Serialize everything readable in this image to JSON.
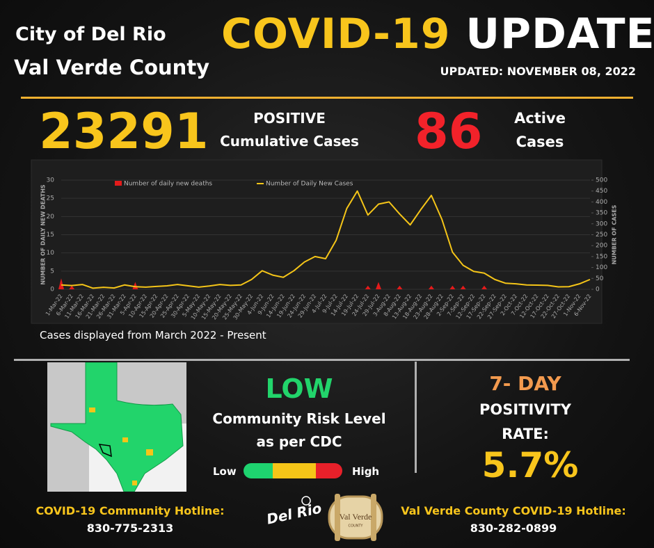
{
  "header": {
    "city": "City of Del Rio",
    "county": "Val Verde County",
    "title_covid": "COVID-19",
    "title_update": "UPDATE",
    "updated": "UPDATED: NOVEMBER 08, 2022"
  },
  "stats": {
    "positive_value": "23291",
    "positive_label_1": "POSITIVE",
    "positive_label_2": "Cumulative Cases",
    "active_value": "86",
    "active_label_1": "Active",
    "active_label_2": "Cases"
  },
  "chart_data": {
    "type": "combo",
    "caption": "Cases displayed from March 2022 - Present",
    "ylabel": "NUMBER OF DAILY NEW DEATHS",
    "y2label": "NUMBER OF CASES",
    "ylim": [
      0,
      30
    ],
    "yticks": [
      0,
      5,
      10,
      15,
      20,
      25,
      30
    ],
    "y2lim": [
      0,
      500
    ],
    "y2ticks": [
      0,
      50,
      100,
      150,
      200,
      250,
      300,
      350,
      400,
      450,
      500
    ],
    "grid": true,
    "categories": [
      "1-Mar-22",
      "6-Mar-22",
      "11-Mar-22",
      "16-Mar-22",
      "21-Mar-22",
      "26-Mar-22",
      "31-Mar-22",
      "5-Apr-22",
      "10-Apr-22",
      "15-Apr-22",
      "20-Apr-22",
      "25-Apr-22",
      "30-Apr-22",
      "5-May-22",
      "10-May-22",
      "15-May-22",
      "20-May-22",
      "25-May-22",
      "30-May-22",
      "4-Jun-22",
      "9-Jun-22",
      "14-Jun-22",
      "19-Jun-22",
      "24-Jun-22",
      "29-Jun-22",
      "4-Jul-22",
      "9-Jul-22",
      "14-Jul-22",
      "19-Jul-22",
      "24-Jul-22",
      "29-Jul-22",
      "3-Aug-22",
      "8-Aug-22",
      "13-Aug-22",
      "18-Aug-22",
      "23-Aug-22",
      "28-Aug-22",
      "2-Sep-22",
      "7-Sep-22",
      "12-Sep-22",
      "17-Sep-22",
      "22-Sep-22",
      "27-Sep-22",
      "2-Oct-22",
      "7-Oct-22",
      "12-Oct-22",
      "17-Oct-22",
      "22-Oct-22",
      "27-Oct-22",
      "1-Nov-22",
      "6-Nov-22"
    ],
    "series": [
      {
        "name": "Number of daily new deaths",
        "type": "bar",
        "color": "#e31b1b",
        "values": [
          3,
          1,
          0,
          0,
          0,
          0,
          0,
          2,
          0,
          0,
          0,
          0,
          0,
          0,
          0,
          0,
          0,
          0,
          0,
          0,
          0,
          0,
          0,
          0,
          0,
          0,
          0,
          0,
          0,
          1,
          2,
          0,
          1,
          0,
          0,
          1,
          0,
          1,
          1,
          0,
          1,
          0,
          0,
          0,
          0,
          0,
          0,
          0,
          0,
          0,
          0
        ]
      },
      {
        "name": "Number of Daily New Cases",
        "type": "line",
        "color": "#f5c518",
        "axis": "y2",
        "values": [
          20,
          17,
          22,
          5,
          9,
          6,
          20,
          12,
          10,
          13,
          16,
          22,
          16,
          10,
          15,
          22,
          18,
          20,
          45,
          85,
          65,
          55,
          85,
          125,
          150,
          140,
          225,
          370,
          450,
          340,
          390,
          400,
          345,
          295,
          365,
          430,
          320,
          170,
          110,
          82,
          74,
          45,
          28,
          25,
          20,
          19,
          18,
          11,
          12,
          25,
          45
        ]
      }
    ]
  },
  "risk": {
    "level": "LOW",
    "label_1": "Community Risk Level",
    "label_2": "as per CDC",
    "low": "Low",
    "high": "High"
  },
  "positivity": {
    "label_1": "7- DAY",
    "label_2": "POSITIVITY",
    "label_3": "RATE:",
    "value": "5.7%"
  },
  "hotlines": {
    "community_label": "COVID-19 Community Hotline:",
    "community_number": "830-775-2313",
    "county_label": "Val Verde County COVID-19 Hotline:",
    "county_number": "830-282-0899"
  },
  "logos": {
    "del_rio": "Del Rio",
    "val_verde": "Val Verde",
    "county": "COUNTY"
  }
}
